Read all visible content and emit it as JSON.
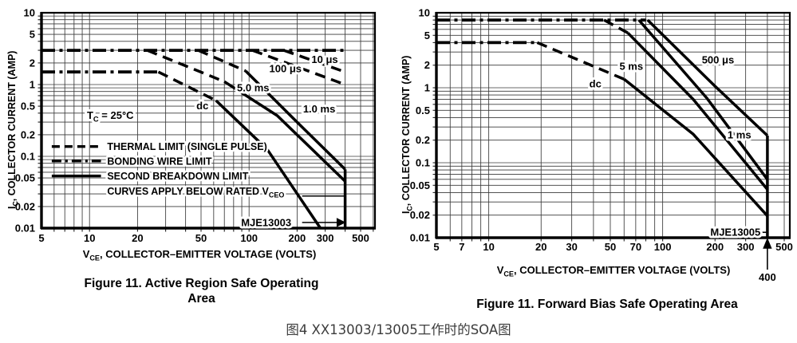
{
  "caption_cn": "图4 XX13003/13005工作时的SOA图",
  "chart_data": [
    {
      "name": "mje13003-active-region-soa",
      "type": "line",
      "device": "MJE13003",
      "title": "Figure 11. Active Region Safe Operating Area",
      "title_lines": [
        "Figure 11. Active Region Safe Operating",
        "Area"
      ],
      "xlabel_parts": {
        "pre": "V",
        "sub": "CE",
        "post": ", COLLECTOR–EMITTER VOLTAGE (VOLTS)"
      },
      "ylabel_parts": {
        "pre": "I",
        "sub": "C",
        "post": ", COLLECTOR CURRENT (AMP)"
      },
      "x_scale": "log",
      "y_scale": "log",
      "xlim": [
        5,
        615
      ],
      "ylim": [
        0.01,
        10
      ],
      "x_ticks": [
        5,
        10,
        20,
        50,
        100,
        200,
        300,
        500
      ],
      "y_ticks": [
        10,
        5,
        2,
        1,
        0.5,
        0.2,
        0.1,
        0.05,
        0.02,
        0.01
      ],
      "series": [
        {
          "name": "bonding-wire-limit-3A",
          "style": "dashdot",
          "points": [
            [
              5,
              3
            ],
            [
              400,
              3
            ]
          ]
        },
        {
          "name": "dc-max-current-1.5A",
          "style": "dashdot",
          "points": [
            [
              5,
              1.5
            ],
            [
              27,
              1.5
            ]
          ]
        },
        {
          "name": "10us-thermal-limit",
          "style": "dashed",
          "points": [
            [
              165,
              3
            ],
            [
              400,
              1.5
            ]
          ]
        },
        {
          "name": "100us-thermal-limit",
          "style": "dashed",
          "points": [
            [
              105,
              3
            ],
            [
              400,
              1.0
            ]
          ]
        },
        {
          "name": "1ms-thermal-limit",
          "style": "dashed",
          "points": [
            [
              48,
              3
            ],
            [
              95,
              1.55
            ]
          ]
        },
        {
          "name": "1ms-second-breakdown",
          "style": "solid",
          "points": [
            [
              95,
              1.55
            ],
            [
              200,
              0.3
            ],
            [
              400,
              0.066
            ]
          ]
        },
        {
          "name": "5ms-thermal-limit",
          "style": "dashed",
          "points": [
            [
              23,
              3
            ],
            [
              70,
              1.1
            ]
          ]
        },
        {
          "name": "5ms-second-breakdown",
          "style": "solid",
          "points": [
            [
              70,
              1.1
            ],
            [
              150,
              0.37
            ],
            [
              400,
              0.045
            ]
          ]
        },
        {
          "name": "dc-thermal-limit",
          "style": "dashed",
          "points": [
            [
              27,
              1.5
            ],
            [
              62,
              0.6
            ]
          ]
        },
        {
          "name": "dc-second-breakdown",
          "style": "solid",
          "points": [
            [
              62,
              0.6
            ],
            [
              130,
              0.125
            ],
            [
              280,
              0.01
            ]
          ]
        },
        {
          "name": "vceo-boundary-400V",
          "style": "solid",
          "points": [
            [
              400,
              0.066
            ],
            [
              400,
              0.01
            ]
          ]
        }
      ],
      "labels": [
        {
          "text": "10 μs",
          "v": 298,
          "i": 2.25
        },
        {
          "text": "100 μs",
          "v": 169,
          "i": 1.66
        },
        {
          "text": "5.0 ms",
          "v": 106,
          "i": 0.9
        },
        {
          "text": "1.0 ms",
          "v": 275,
          "i": 0.46
        },
        {
          "text": "dc",
          "v": 51,
          "i": 0.51
        },
        {
          "parts": [
            {
              "t": "T"
            },
            {
              "t": "C",
              "sub": true
            },
            {
              "t": " = 25°C"
            }
          ],
          "v": 13.5,
          "i": 0.375
        },
        {
          "text": "MJE13003",
          "v": 128,
          "i": 0.012
        }
      ],
      "legend_rows": [
        {
          "style": "dashed",
          "text": "THERMAL LIMIT (SINGLE PULSE)"
        },
        {
          "style": "dashdot",
          "text": "BONDING WIRE LIMIT"
        },
        {
          "style": "solid",
          "text": "SECOND BREAKDOWN LIMIT"
        },
        {
          "style": "none",
          "parts": [
            {
              "t": "CURVES APPLY BELOW RATED V"
            },
            {
              "t": "CEO",
              "sub": true
            }
          ]
        }
      ],
      "annotations": [
        {
          "type": "arrow",
          "name": "mje13003-pointer",
          "from": [
            215,
            0.012
          ],
          "to": [
            396,
            0.012
          ]
        },
        {
          "type": "line",
          "name": "vceo-callout",
          "from": [
            215,
            0.028
          ],
          "to": [
            400,
            0.028
          ]
        }
      ]
    },
    {
      "name": "mje13005-forward-bias-soa",
      "type": "line",
      "device": "MJE13005",
      "title": "Figure 11. Forward Bias Safe Operating Area",
      "title_lines": [
        "Figure 11. Forward Bias Safe Operating Area"
      ],
      "xlabel_parts": {
        "pre": "V",
        "sub": "CE",
        "post": ", COLLECTOR–EMITTER VOLTAGE (VOLTS)"
      },
      "ylabel_parts": {
        "pre": "I",
        "sub": "C",
        "post": ", COLLECTOR CURRENT (AMP)"
      },
      "x_scale": "log",
      "y_scale": "log",
      "xlim": [
        5,
        540
      ],
      "ylim": [
        0.01,
        10
      ],
      "x_ticks": [
        5,
        7,
        10,
        20,
        30,
        50,
        70,
        100,
        200,
        300,
        500
      ],
      "y_ticks": [
        10,
        5,
        2,
        1,
        0.5,
        0.2,
        0.1,
        0.05,
        0.02,
        0.01
      ],
      "series": [
        {
          "name": "bonding-wire-limit-8A",
          "style": "dashdot",
          "points": [
            [
              5,
              8
            ],
            [
              80,
              8
            ]
          ]
        },
        {
          "name": "dc-max-current-4A",
          "style": "dashdot",
          "points": [
            [
              5,
              4
            ],
            [
              19,
              4
            ]
          ]
        },
        {
          "name": "dc-thermal-limit",
          "style": "dashed",
          "points": [
            [
              19,
              4
            ],
            [
              60,
              1.3
            ]
          ]
        },
        {
          "name": "dc-second-breakdown",
          "style": "solid",
          "points": [
            [
              60,
              1.3
            ],
            [
              150,
              0.24
            ],
            [
              400,
              0.0195
            ]
          ]
        },
        {
          "name": "5ms-thermal-limit",
          "style": "dashed",
          "points": [
            [
              46,
              8
            ],
            [
              63,
              5.4
            ]
          ]
        },
        {
          "name": "5ms-second-breakdown",
          "style": "solid",
          "points": [
            [
              63,
              5.4
            ],
            [
              150,
              0.7
            ],
            [
              400,
              0.044
            ]
          ]
        },
        {
          "name": "1ms-second-breakdown",
          "style": "solid",
          "points": [
            [
              73,
              8
            ],
            [
              180,
              0.72
            ],
            [
              400,
              0.06
            ]
          ]
        },
        {
          "name": "500us-second-breakdown",
          "style": "solid",
          "points": [
            [
              82,
              8
            ],
            [
              200,
              1.05
            ],
            [
              400,
              0.23
            ]
          ]
        },
        {
          "name": "vceo-boundary-400V",
          "style": "solid",
          "points": [
            [
              400,
              0.23
            ],
            [
              400,
              0.01
            ]
          ]
        }
      ],
      "labels": [
        {
          "text": "dc",
          "v": 41,
          "i": 1.13
        },
        {
          "text": "5 ms",
          "v": 66,
          "i": 1.94
        },
        {
          "text": "500 μs",
          "v": 208,
          "i": 2.36
        },
        {
          "text": "1 ms",
          "v": 276,
          "i": 0.235
        },
        {
          "text": "MJE13005",
          "v": 262,
          "i": 0.0118
        }
      ],
      "legend_rows": [],
      "annotations": [
        {
          "type": "line",
          "name": "mje13005-pointer",
          "from": [
            355,
            0.0118
          ],
          "to": [
            400,
            0.0118
          ]
        },
        {
          "type": "vmarker",
          "name": "vce-400-marker",
          "v": 400,
          "label": "400"
        }
      ]
    }
  ]
}
